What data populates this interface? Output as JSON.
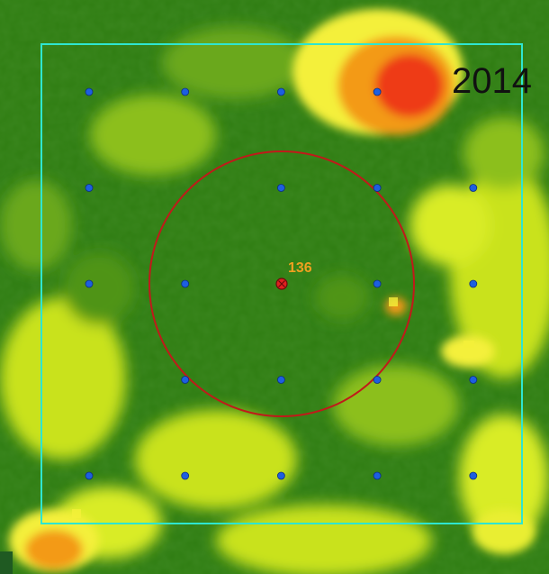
{
  "map": {
    "year_label": "2014",
    "plot_label": "136",
    "colors": {
      "boundary": "#2ee6d0",
      "circle": "#c01a1a",
      "sample_point": "#1d5fe0",
      "center_marker": "#e02020",
      "plot_label": "#f0a020",
      "dense_vegetation": "#2f7d12",
      "medium_vegetation": "#6aa81d",
      "light_vegetation": "#c9e21e",
      "yellow": "#f4f03a",
      "orange": "#f39a18",
      "red": "#ee3a12"
    },
    "icons": [
      "sample-point-icon",
      "center-marker-icon"
    ],
    "sample_grid": {
      "rows": 5,
      "cols": 5,
      "missing": [
        [
          0,
          4
        ],
        [
          1,
          1
        ],
        [
          2,
          2
        ],
        [
          3,
          0
        ]
      ]
    }
  }
}
